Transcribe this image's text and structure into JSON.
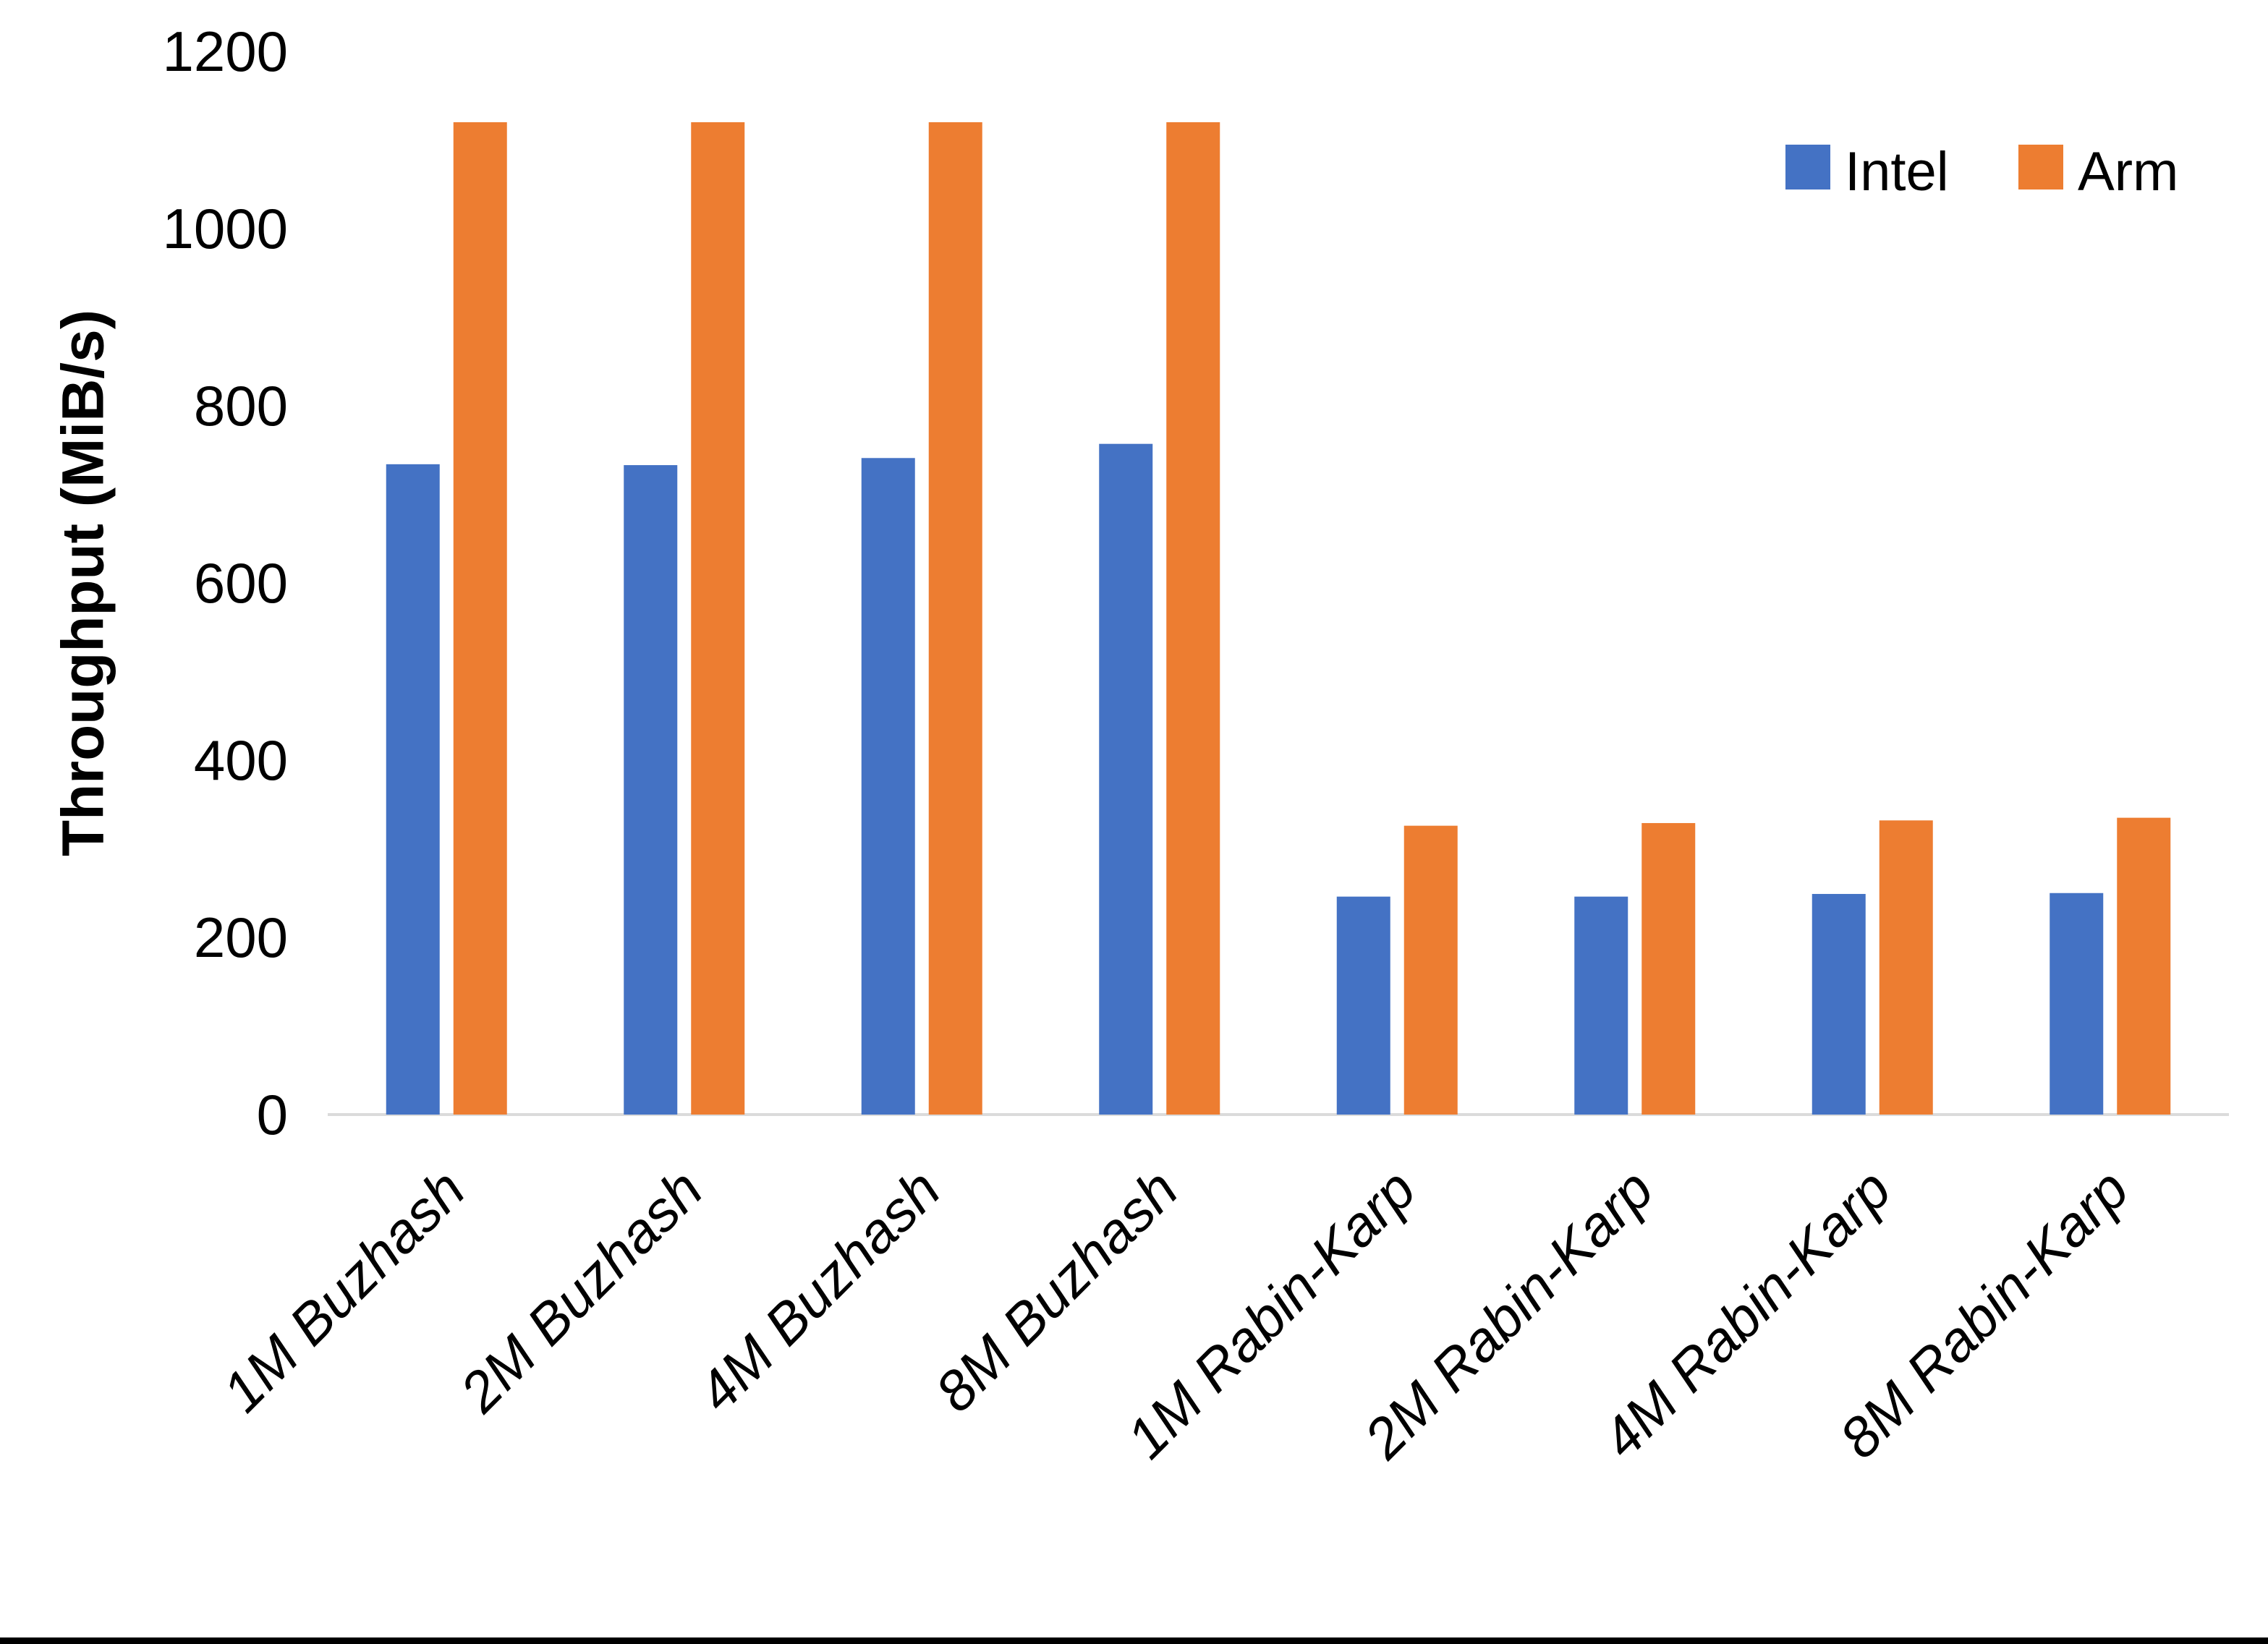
{
  "figure": {
    "background_color": "#FFFFFF",
    "bottom_border_color": "#000000"
  },
  "chart_data": {
    "type": "bar",
    "title": "",
    "xlabel": "",
    "ylabel": "Throughput (MiB/s)",
    "categories": [
      "1M Buzhash",
      "2M Buzhash",
      "4M Buzhash",
      "8M Buzhash",
      "1M Rabin-Karp",
      "2M Rabin-Karp",
      "4M Rabin-Karp",
      "8M Rabin-Karp"
    ],
    "series": [
      {
        "name": "Intel",
        "color": "#4472C4",
        "values": [
          734,
          733,
          741,
          757,
          246,
          246,
          249,
          250
        ]
      },
      {
        "name": "Arm",
        "color": "#ED7D31",
        "values": [
          1120,
          1120,
          1120,
          1120,
          326,
          329,
          332,
          335
        ]
      }
    ],
    "ylim": [
      0,
      1200
    ],
    "yticks": [
      0,
      200,
      400,
      600,
      800,
      1000,
      1200
    ],
    "grid": false,
    "legend_position": "top-right",
    "axis_line_color": "#DBDBDB",
    "text_color": "#000000"
  }
}
